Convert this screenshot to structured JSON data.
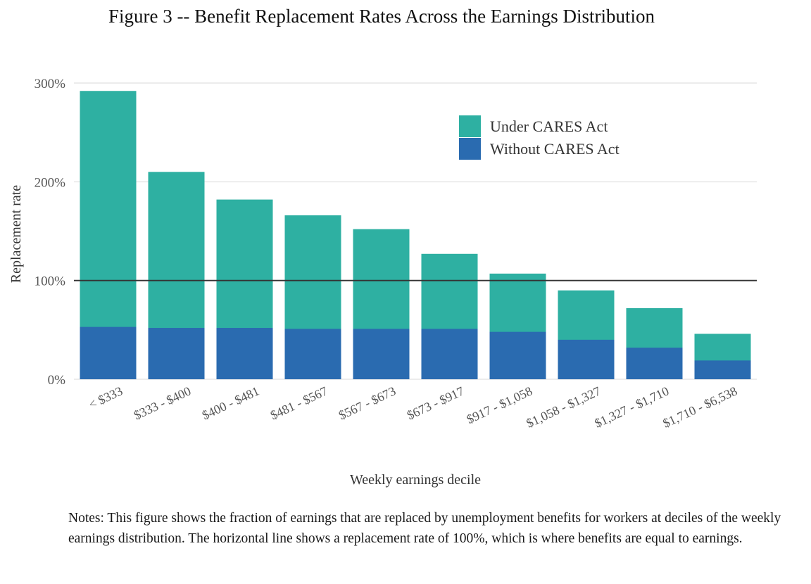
{
  "figure": {
    "title": "Figure 3 -- Benefit Replacement Rates Across the Earnings Distribution",
    "notes": "Notes: This figure shows the fraction of earnings that are replaced by unemployment benefits for workers at deciles of the weekly earnings distribution. The horizontal line shows a replacement rate of 100%, which is where benefits are equal to earnings."
  },
  "chart_data": {
    "type": "bar",
    "stacked": true,
    "title": "Figure 3 -- Benefit Replacement Rates Across the Earnings Distribution",
    "xlabel": "Weekly earnings decile",
    "ylabel": "Replacement rate",
    "categories": [
      "< $333",
      "$333 - $400",
      "$400 - $481",
      "$481 - $567",
      "$567 - $673",
      "$673 - $917",
      "$917 - $1,058",
      "$1,058 - $1,327",
      "$1,327 - $1,710",
      "$1,710 - $6,538"
    ],
    "series": [
      {
        "name": "Without CARES Act",
        "color": "#2a6bb0",
        "values": [
          53,
          52,
          52,
          51,
          51,
          51,
          48,
          40,
          32,
          19
        ]
      },
      {
        "name": "Under CARES Act",
        "color": "#2eb0a2",
        "values": [
          292,
          210,
          182,
          166,
          152,
          127,
          107,
          90,
          72,
          46
        ]
      }
    ],
    "series_note": "Under CARES Act values are total bar heights; bars are overlaid with Without CARES Act in front.",
    "ylim": [
      0,
      300
    ],
    "yticks": [
      0,
      100,
      200,
      300
    ],
    "ytick_labels": [
      "0%",
      "100%",
      "200%",
      "300%"
    ],
    "reference_line": {
      "y": 100,
      "color": "#333333"
    },
    "grid": true,
    "legend": {
      "position": "top-right",
      "order": [
        "Under CARES Act",
        "Without CARES Act"
      ]
    }
  }
}
